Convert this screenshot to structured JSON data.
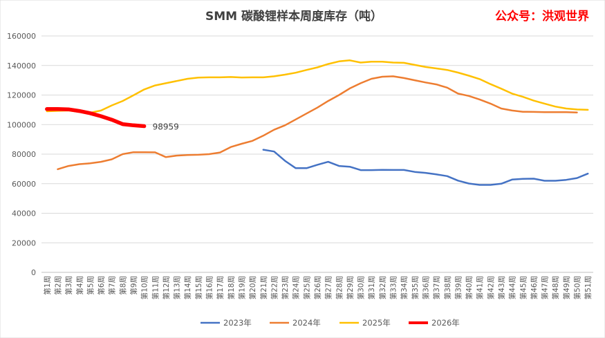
{
  "brand": {
    "label": "公众号：洪观世界"
  },
  "chart_data": {
    "type": "line",
    "title": "SMM 碳酸锂样本周度库存（吨）",
    "xlabel": "",
    "ylabel": "",
    "ylim": [
      0,
      160000
    ],
    "yticks": [
      0,
      20000,
      40000,
      60000,
      80000,
      100000,
      120000,
      140000,
      160000
    ],
    "grid": true,
    "legend_position": "bottom",
    "categories": [
      "第1周",
      "第2周",
      "第3周",
      "第4周",
      "第5周",
      "第6周",
      "第7周",
      "第8周",
      "第9周",
      "第10周",
      "第11周",
      "第12周",
      "第13周",
      "第14周",
      "第15周",
      "第16周",
      "第17周",
      "第18周",
      "第19周",
      "第20周",
      "第21周",
      "第22周",
      "第23周",
      "第24周",
      "第25周",
      "第26周",
      "第27周",
      "第28周",
      "第29周",
      "第30周",
      "第31周",
      "第32周",
      "第33周",
      "第34周",
      "第35周",
      "第36周",
      "第37周",
      "第38周",
      "第39周",
      "第40周",
      "第41周",
      "第42周",
      "第43周",
      "第44周",
      "第45周",
      "第46周",
      "第47周",
      "第48周",
      "第49周",
      "第50周",
      "第51周"
    ],
    "series": [
      {
        "name": "2023年",
        "color": "#4472c4",
        "stroke_width": 2.5,
        "values": [
          null,
          null,
          null,
          null,
          null,
          null,
          null,
          null,
          null,
          null,
          null,
          null,
          null,
          null,
          null,
          null,
          null,
          null,
          null,
          null,
          83000,
          81800,
          75500,
          70500,
          70500,
          72800,
          74800,
          72000,
          71500,
          69200,
          69200,
          69400,
          69300,
          69300,
          68000,
          67300,
          66300,
          65100,
          62100,
          60100,
          59200,
          59200,
          60000,
          62800,
          63300,
          63400,
          62000,
          62000,
          62600,
          63800,
          66800
        ]
      },
      {
        "name": "2024年",
        "color": "#ed7d31",
        "stroke_width": 2.5,
        "values": [
          null,
          69800,
          72000,
          73200,
          73800,
          74800,
          76500,
          80000,
          81300,
          81300,
          81200,
          78000,
          79000,
          79400,
          79600,
          80000,
          81100,
          84800,
          87000,
          89000,
          92500,
          96500,
          99500,
          103500,
          107500,
          111500,
          116000,
          120000,
          124500,
          128000,
          131000,
          132400,
          132700,
          131500,
          130000,
          128500,
          127200,
          125000,
          121000,
          119400,
          117000,
          114200,
          110900,
          109500,
          108700,
          108600,
          108400,
          108400,
          108400,
          108200,
          null
        ]
      },
      {
        "name": "2025年",
        "color": "#ffc000",
        "stroke_width": 2.5,
        "values": [
          109000,
          109300,
          109500,
          108600,
          108000,
          109500,
          113000,
          116000,
          119800,
          123800,
          126500,
          128000,
          129500,
          131000,
          131800,
          132000,
          132000,
          132200,
          131900,
          132000,
          132000,
          132700,
          133800,
          135100,
          137000,
          138700,
          141000,
          142800,
          143500,
          142000,
          142600,
          142600,
          142000,
          141800,
          140400,
          139000,
          138000,
          137000,
          135200,
          133100,
          130800,
          127400,
          124300,
          121000,
          118800,
          116200,
          114200,
          112200,
          110900,
          110200,
          110000
        ]
      },
      {
        "name": "2026年",
        "color": "#ff0000",
        "stroke_width": 5.5,
        "values": [
          110500,
          110500,
          110300,
          109200,
          107700,
          105700,
          103300,
          100300,
          99500,
          98959,
          null,
          null,
          null,
          null,
          null,
          null,
          null,
          null,
          null,
          null,
          null,
          null,
          null,
          null,
          null,
          null,
          null,
          null,
          null,
          null,
          null,
          null,
          null,
          null,
          null,
          null,
          null,
          null,
          null,
          null,
          null,
          null,
          null,
          null,
          null,
          null,
          null,
          null,
          null,
          null,
          null
        ]
      }
    ],
    "annotations": [
      {
        "series": "2026年",
        "index": 9,
        "text": "98959"
      }
    ]
  }
}
